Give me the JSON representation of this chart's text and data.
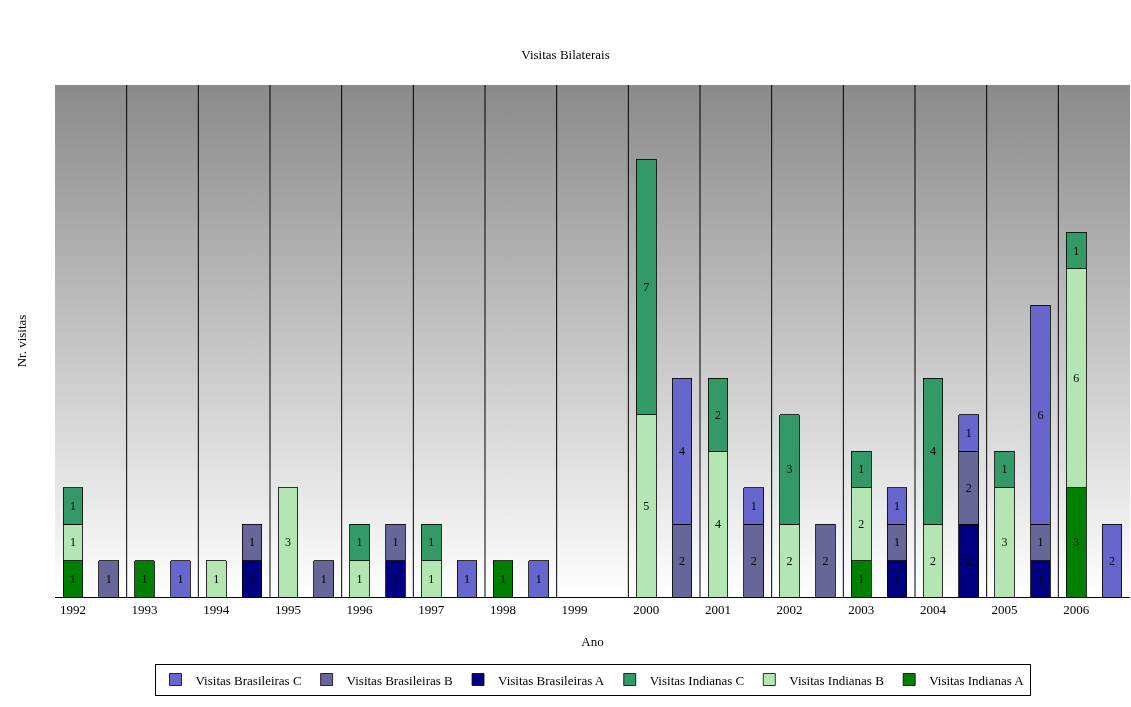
{
  "chart_data": {
    "type": "bar",
    "title": "Visitas Bilaterais",
    "xlabel": "Ano",
    "ylabel": "Nr. visitas",
    "categories": [
      "1992",
      null,
      "1993",
      null,
      "1994",
      null,
      "1995",
      null,
      "1996",
      null,
      "1997",
      null,
      "1998",
      null,
      "1999",
      null,
      "2000",
      null,
      "2001",
      null,
      "2002",
      null,
      "2003",
      null,
      "2004",
      null,
      "2005",
      null,
      "2006",
      null
    ],
    "stacked": true,
    "data_labels": true,
    "grid": "x",
    "legend": "bottom",
    "series": [
      {
        "name": "Visitas Indianas A",
        "color": "#008000",
        "values": [
          1,
          null,
          1,
          null,
          null,
          null,
          null,
          null,
          null,
          null,
          null,
          null,
          1,
          null,
          null,
          null,
          null,
          null,
          null,
          null,
          null,
          null,
          1,
          null,
          null,
          null,
          null,
          null,
          3,
          null
        ]
      },
      {
        "name": "Visitas Indianas B",
        "color": "#b3e6b3",
        "values": [
          1,
          null,
          null,
          null,
          1,
          null,
          3,
          null,
          1,
          null,
          1,
          null,
          null,
          null,
          null,
          null,
          5,
          null,
          4,
          null,
          2,
          null,
          2,
          null,
          2,
          null,
          3,
          null,
          6,
          null
        ]
      },
      {
        "name": "Visitas Indianas C",
        "color": "#339966",
        "values": [
          1,
          null,
          null,
          null,
          null,
          null,
          null,
          null,
          1,
          null,
          1,
          null,
          null,
          null,
          null,
          null,
          7,
          null,
          2,
          null,
          3,
          null,
          1,
          null,
          4,
          null,
          1,
          null,
          1,
          null
        ]
      },
      {
        "name": "Visitas Brasileiras A",
        "color": "#000080",
        "values": [
          null,
          null,
          null,
          null,
          null,
          1,
          null,
          null,
          null,
          1,
          null,
          null,
          null,
          null,
          null,
          null,
          null,
          null,
          null,
          null,
          null,
          null,
          null,
          1,
          null,
          2,
          null,
          1,
          null,
          null
        ]
      },
      {
        "name": "Visitas Brasileiras B",
        "color": "#666699",
        "values": [
          null,
          1,
          null,
          null,
          null,
          1,
          null,
          1,
          null,
          1,
          null,
          null,
          null,
          null,
          null,
          null,
          null,
          2,
          null,
          2,
          null,
          2,
          null,
          1,
          null,
          2,
          null,
          1,
          null,
          null
        ]
      },
      {
        "name": "Visitas Brasileiras C",
        "color": "#6666cc",
        "values": [
          null,
          null,
          null,
          1,
          null,
          null,
          null,
          null,
          null,
          null,
          null,
          1,
          null,
          1,
          null,
          null,
          null,
          4,
          null,
          1,
          null,
          null,
          null,
          1,
          null,
          1,
          null,
          6,
          null,
          2
        ]
      }
    ]
  }
}
